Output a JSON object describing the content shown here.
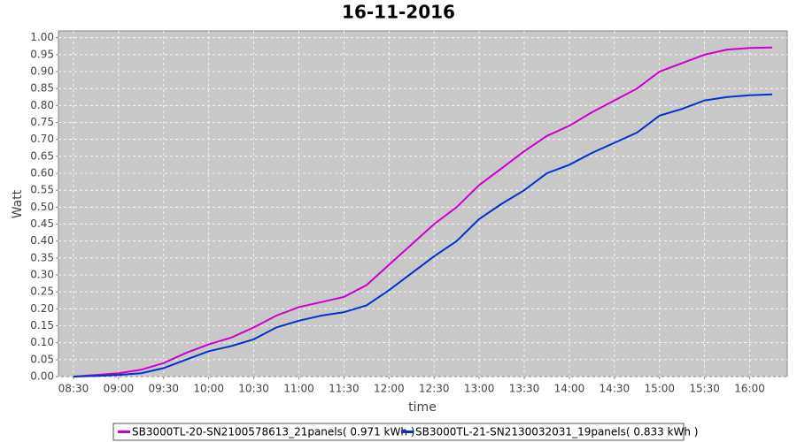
{
  "chart_data": {
    "type": "line",
    "title": "16-11-2016",
    "x_label": "time",
    "y_label": "Watt",
    "x": [
      "08:30",
      "08:45",
      "09:00",
      "09:15",
      "09:30",
      "09:45",
      "10:00",
      "10:15",
      "10:30",
      "10:45",
      "11:00",
      "11:15",
      "11:30",
      "11:45",
      "12:00",
      "12:15",
      "12:30",
      "12:45",
      "13:00",
      "13:15",
      "13:30",
      "13:45",
      "14:00",
      "14:15",
      "14:30",
      "14:45",
      "15:00",
      "15:15",
      "15:30",
      "15:45",
      "16:00",
      "16:15"
    ],
    "series": [
      {
        "name": "SB3000TL-20-SN2100578613_21panels( 0.971 kWh )",
        "color": "#cc00cc",
        "values": [
          0.0,
          0.005,
          0.01,
          0.02,
          0.04,
          0.07,
          0.095,
          0.115,
          0.145,
          0.18,
          0.205,
          0.22,
          0.235,
          0.27,
          0.33,
          0.39,
          0.45,
          0.5,
          0.565,
          0.615,
          0.665,
          0.71,
          0.74,
          0.78,
          0.815,
          0.85,
          0.9,
          0.925,
          0.95,
          0.965,
          0.97,
          0.971
        ]
      },
      {
        "name": "SB3000TL-21-SN2130032031_19panels( 0.833 kWh )",
        "color": "#0033cc",
        "values": [
          0.0,
          0.002,
          0.005,
          0.01,
          0.025,
          0.05,
          0.075,
          0.09,
          0.11,
          0.145,
          0.165,
          0.18,
          0.19,
          0.21,
          0.255,
          0.305,
          0.355,
          0.4,
          0.465,
          0.51,
          0.55,
          0.6,
          0.625,
          0.66,
          0.69,
          0.72,
          0.77,
          0.79,
          0.815,
          0.825,
          0.83,
          0.833
        ]
      }
    ],
    "xlim": [
      "08:20",
      "16:25"
    ],
    "xticks": [
      "08:30",
      "09:00",
      "09:30",
      "10:00",
      "10:30",
      "11:00",
      "11:30",
      "12:00",
      "12:30",
      "13:00",
      "13:30",
      "14:00",
      "14:30",
      "15:00",
      "15:30",
      "16:00"
    ],
    "ylim": [
      0,
      1.02
    ],
    "yticks": [
      {
        "value": 0,
        "label": "0.00"
      },
      {
        "value": 0.05,
        "label": "0.05"
      },
      {
        "value": 0.1,
        "label": "0.10"
      },
      {
        "value": 0.15,
        "label": "0.15"
      },
      {
        "value": 0.2,
        "label": "0.20"
      },
      {
        "value": 0.25,
        "label": "0.25"
      },
      {
        "value": 0.3,
        "label": "0.30"
      },
      {
        "value": 0.35,
        "label": "0.35"
      },
      {
        "value": 0.4,
        "label": "0.40"
      },
      {
        "value": 0.45,
        "label": "0.45"
      },
      {
        "value": 0.5,
        "label": "0.50"
      },
      {
        "value": 0.55,
        "label": "0.55"
      },
      {
        "value": 0.6,
        "label": "0.60"
      },
      {
        "value": 0.65,
        "label": "0.65"
      },
      {
        "value": 0.7,
        "label": "0.70"
      },
      {
        "value": 0.75,
        "label": "0.75"
      },
      {
        "value": 0.8,
        "label": "0.80"
      },
      {
        "value": 0.85,
        "label": "0.85"
      },
      {
        "value": 0.9,
        "label": "0.90"
      },
      {
        "value": 0.95,
        "label": "0.95"
      },
      {
        "value": 1.0,
        "label": "1.00"
      }
    ],
    "grid": true
  }
}
